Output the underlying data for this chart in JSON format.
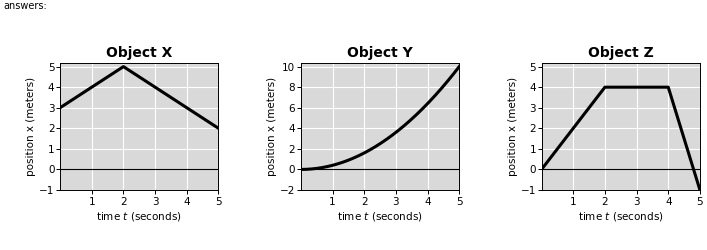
{
  "charts": [
    {
      "title": "Object X",
      "x": [
        0,
        2,
        5
      ],
      "y": [
        3,
        5,
        2
      ],
      "xlim": [
        0,
        5
      ],
      "ylim": [
        -1,
        5.2
      ],
      "yticks": [
        -1,
        0,
        1,
        2,
        3,
        4,
        5
      ],
      "xticks": [
        1,
        2,
        3,
        4,
        5
      ],
      "curve": false
    },
    {
      "title": "Object Y",
      "xlim": [
        0,
        5
      ],
      "ylim": [
        -2,
        10.4
      ],
      "yticks": [
        -2,
        0,
        2,
        4,
        6,
        8,
        10
      ],
      "xticks": [
        1,
        2,
        3,
        4,
        5
      ],
      "curve": true,
      "curve_t": [
        0,
        5
      ],
      "curve_power": 2,
      "curve_scale": 0.4
    },
    {
      "title": "Object Z",
      "x": [
        0,
        2,
        4,
        5
      ],
      "y": [
        0,
        4,
        4,
        -1
      ],
      "xlim": [
        0,
        5
      ],
      "ylim": [
        -1,
        5.2
      ],
      "yticks": [
        -1,
        0,
        1,
        2,
        3,
        4,
        5
      ],
      "xticks": [
        1,
        2,
        3,
        4,
        5
      ],
      "curve": false
    }
  ],
  "ylabel": "position x (meters)",
  "xlabel": "time $t$ (seconds)",
  "bg_color": "#d9d9d9",
  "line_color": "#000000",
  "line_width": 2.2,
  "title_fontsize": 10,
  "label_fontsize": 7.5,
  "tick_fontsize": 7.5,
  "answers_text": "answers:",
  "answers_fontsize": 7
}
